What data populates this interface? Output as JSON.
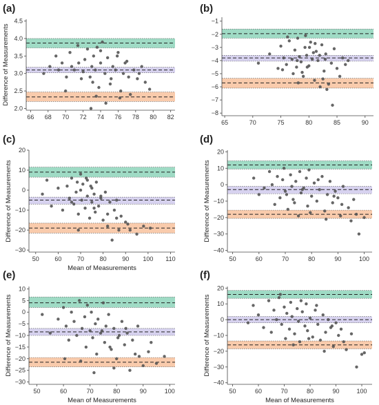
{
  "colors": {
    "upper_band": "#7fcfb1",
    "mean_band": "#c9c3ea",
    "lower_band": "#f7b990",
    "point": "#555555",
    "axis": "#444444"
  },
  "chart_data": [
    {
      "panel": "(a)",
      "type": "scatter",
      "xlabel": "",
      "ylabel": "Difference of Measurements",
      "xlim": [
        65.5,
        82.5
      ],
      "ylim": [
        1.95,
        4.55
      ],
      "xticks": [
        66,
        68,
        70,
        72,
        74,
        76,
        78,
        80,
        82
      ],
      "yticks": [
        2.0,
        2.5,
        3.0,
        3.5,
        4.0,
        4.5
      ],
      "ytick_format": "1",
      "bands": {
        "upper": {
          "y": 3.87,
          "lo": 3.73,
          "hi": 4.0
        },
        "mean": {
          "y": 3.1,
          "lo": 3.02,
          "hi": 3.18
        },
        "lower": {
          "y": 2.33,
          "lo": 2.2,
          "hi": 2.47
        }
      },
      "x": [
        67.5,
        68.2,
        68.9,
        69.6,
        70.1,
        70.5,
        71.0,
        71.4,
        71.8,
        72.2,
        72.5,
        72.8,
        73.0,
        73.2,
        73.4,
        73.6,
        73.8,
        74.0,
        74.2,
        74.5,
        74.8,
        75.1,
        75.4,
        75.7,
        76.0,
        76.3,
        76.6,
        77.0,
        77.4,
        77.8,
        78.2,
        78.7,
        79.1,
        79.6,
        70.0,
        71.5,
        72.0,
        73.5,
        74.6,
        75.9,
        77.2,
        78.4,
        69.2,
        72.9,
        74.0,
        75.2,
        76.8,
        70.7,
        73.1,
        76.2
      ],
      "y": [
        3.0,
        3.2,
        3.5,
        3.3,
        2.9,
        3.6,
        3.1,
        3.8,
        2.85,
        3.4,
        3.7,
        2.9,
        3.2,
        3.5,
        3.1,
        3.75,
        2.6,
        3.3,
        3.9,
        3.0,
        3.45,
        2.7,
        3.2,
        3.1,
        3.6,
        2.5,
        3.0,
        3.35,
        2.4,
        3.1,
        2.85,
        3.2,
        2.75,
        2.55,
        2.5,
        3.3,
        3.05,
        2.35,
        2.15,
        3.5,
        2.9,
        3.0,
        3.1,
        2.0,
        3.65,
        2.85,
        3.3,
        3.2,
        2.75,
        2.3
      ]
    },
    {
      "panel": "(b)",
      "type": "scatter",
      "xlabel": "",
      "ylabel": "",
      "xlim": [
        64.5,
        91.5
      ],
      "ylim": [
        -8.2,
        -0.7
      ],
      "xticks": [
        65,
        70,
        75,
        80,
        85,
        90
      ],
      "yticks": [
        -1,
        -2,
        -3,
        -4,
        -5,
        -6,
        -7,
        -8
      ],
      "ytick_format": "0",
      "bands": {
        "upper": {
          "y": -1.95,
          "lo": -2.3,
          "hi": -1.6
        },
        "mean": {
          "y": -3.8,
          "lo": -4.05,
          "hi": -3.6
        },
        "lower": {
          "y": -5.7,
          "lo": -6.1,
          "hi": -5.35
        }
      },
      "x": [
        71.0,
        73.0,
        74.5,
        75.0,
        75.5,
        76.0,
        76.5,
        77.0,
        77.2,
        77.5,
        77.8,
        78.0,
        78.3,
        78.6,
        79.0,
        79.3,
        79.6,
        80.0,
        80.3,
        80.6,
        81.0,
        81.3,
        81.6,
        82.0,
        82.3,
        82.7,
        83.0,
        83.5,
        84.0,
        84.5,
        85.0,
        85.5,
        86.0,
        87.0,
        76.2,
        78.8,
        80.8,
        82.5,
        84.2,
        79.4,
        77.9,
        81.9,
        83.2,
        75.3,
        80.1,
        86.5,
        78.1,
        82.9,
        79.7,
        81.1
      ],
      "y": [
        -4.2,
        -3.5,
        -4.6,
        -2.9,
        -3.8,
        -4.3,
        -2.5,
        -3.9,
        -5.0,
        -3.2,
        -4.5,
        -2.3,
        -3.7,
        -4.1,
        -5.2,
        -3.0,
        -3.6,
        -4.4,
        -2.6,
        -3.9,
        -5.5,
        -3.3,
        -4.0,
        -6.0,
        -2.8,
        -4.8,
        -3.5,
        -5.8,
        -4.2,
        -3.1,
        -4.6,
        -5.2,
        -3.8,
        -4.0,
        -2.2,
        -4.9,
        -3.4,
        -5.4,
        -7.4,
        -2.1,
        -4.0,
        -3.6,
        -6.2,
        -4.7,
        -3.0,
        -4.3,
        -5.7,
        -3.9,
        -4.5,
        -2.7
      ]
    },
    {
      "panel": "(c)",
      "type": "scatter",
      "xlabel": "Mean of Measurements",
      "ylabel": "Difference of Measurements",
      "xlim": [
        47,
        112
      ],
      "ylim": [
        -31,
        20
      ],
      "xticks": [
        50,
        60,
        70,
        80,
        90,
        100,
        110
      ],
      "yticks": [
        20,
        10,
        0,
        -10,
        -20,
        -30
      ],
      "ytick_format": "0",
      "bands": {
        "upper": {
          "y": 9,
          "lo": 6.5,
          "hi": 11.5
        },
        "mean": {
          "y": -5,
          "lo": -7,
          "hi": -3.5
        },
        "lower": {
          "y": -19,
          "lo": -21.5,
          "hi": -16.5
        }
      },
      "x": [
        53,
        55,
        57,
        60,
        62,
        64,
        65,
        66,
        67,
        68,
        68.5,
        69,
        70,
        70.5,
        71,
        72,
        72.5,
        73,
        74,
        74.5,
        75,
        76,
        76.5,
        77,
        78,
        79,
        80,
        81,
        82,
        83,
        84,
        85,
        86,
        87,
        88,
        90,
        92,
        95,
        98,
        101,
        66,
        70,
        73,
        76,
        79,
        82,
        86,
        91,
        69,
        75
      ],
      "y": [
        -2,
        5,
        -8,
        1,
        -10,
        2,
        -4,
        6,
        -7,
        -1,
        4,
        -12,
        0,
        -5,
        3,
        -9,
        6,
        -3,
        -14,
        2,
        -6,
        -2,
        -11,
        4,
        -8,
        -4,
        -15,
        -1,
        -18,
        -6,
        -25,
        -10,
        -5,
        -20,
        -13,
        -16,
        -20,
        -22,
        -18,
        -19,
        -6,
        8,
        5,
        -9,
        -3,
        -12,
        -14,
        -17,
        -20,
        1
      ]
    },
    {
      "panel": "(d)",
      "type": "scatter",
      "xlabel": "",
      "ylabel": "Difference of Measurements",
      "xlim": [
        48,
        103
      ],
      "ylim": [
        -41,
        21
      ],
      "xticks": [
        50,
        60,
        70,
        80,
        90,
        100
      ],
      "yticks": [
        20,
        10,
        0,
        -10,
        -20,
        -30,
        -40
      ],
      "ytick_format": "0",
      "bands": {
        "upper": {
          "y": 12,
          "lo": 9.5,
          "hi": 14.5
        },
        "mean": {
          "y": -3,
          "lo": -5.5,
          "hi": -1
        },
        "lower": {
          "y": -18,
          "lo": -20.5,
          "hi": -15.5
        }
      },
      "x": [
        58,
        60,
        62,
        64,
        65,
        66,
        67,
        68,
        69,
        69.5,
        70,
        71,
        72,
        72.5,
        73,
        74,
        75,
        75.5,
        76,
        77,
        78,
        78.5,
        79,
        80,
        81,
        82,
        83,
        84,
        85,
        86,
        87,
        88,
        89,
        90,
        91,
        92,
        94,
        95,
        96,
        98,
        100,
        70.5,
        73.5,
        76.5,
        79.5,
        82.5,
        85.5,
        88.5,
        91.5,
        97
      ],
      "y": [
        4,
        -6,
        -2,
        8,
        0,
        -12,
        5,
        -8,
        3,
        10,
        -4,
        -15,
        6,
        -1,
        -9,
        2,
        -19,
        8,
        -5,
        -2,
        4,
        -13,
        9,
        -7,
        1,
        -10,
        -3,
        5,
        -16,
        -6,
        2,
        -11,
        -4,
        -8,
        -19,
        -1,
        -14,
        -22,
        -9,
        -30,
        -20,
        -6,
        -11,
        -3,
        -17,
        3,
        -21,
        -7,
        -12,
        -18
      ]
    },
    {
      "panel": "(e)",
      "type": "scatter",
      "xlabel": "Mean of Measurements",
      "ylabel": "Difference of Measurements",
      "xlim": [
        47,
        102
      ],
      "ylim": [
        -31,
        11
      ],
      "xticks": [
        50,
        60,
        70,
        80,
        90,
        100
      ],
      "yticks": [
        10,
        5,
        0,
        -5,
        -10,
        -15,
        -20,
        -25,
        -30
      ],
      "ytick_format": "0",
      "bands": {
        "upper": {
          "y": 4,
          "lo": 2,
          "hi": 6.5
        },
        "mean": {
          "y": -8.5,
          "lo": -10,
          "hi": -7
        },
        "lower": {
          "y": -21.5,
          "lo": -23.5,
          "hi": -19.5
        }
      },
      "x": [
        52,
        55,
        58,
        60,
        61,
        62,
        63,
        64,
        65,
        66,
        67,
        68,
        68.5,
        69,
        70,
        70.5,
        71,
        72,
        72.5,
        73,
        74,
        75,
        75.5,
        76,
        77,
        78,
        79,
        80,
        81,
        82,
        83,
        84,
        85,
        86,
        87,
        88,
        90,
        92,
        95,
        98,
        66.5,
        71.5,
        74.5,
        77.5,
        80.5,
        83.5,
        88.5,
        93,
        60.5,
        79
      ],
      "y": [
        -1,
        -9,
        -3,
        2,
        -6,
        -12,
        0,
        -4,
        -10,
        5,
        -7,
        -2,
        -15,
        3,
        -8,
        0,
        -11,
        -5,
        -18,
        -3,
        -9,
        4,
        -13,
        -6,
        -1,
        -16,
        -7,
        -20,
        -10,
        -4,
        -14,
        -9,
        -25,
        -12,
        -18,
        -6,
        -23,
        -17,
        -22,
        -19,
        -21,
        -26,
        -8,
        -15,
        -11,
        -7,
        -19,
        -13,
        -20,
        -24
      ]
    },
    {
      "panel": "(f)",
      "type": "scatter",
      "xlabel": "Mean of Measurements",
      "ylabel": "Difference of Measurements",
      "xlim": [
        48,
        104
      ],
      "ylim": [
        -41,
        21
      ],
      "xticks": [
        50,
        60,
        70,
        80,
        90,
        100
      ],
      "yticks": [
        20,
        10,
        0,
        -10,
        -20,
        -30,
        -40
      ],
      "ytick_format": "0",
      "bands": {
        "upper": {
          "y": 16,
          "lo": 13.5,
          "hi": 18.5
        },
        "mean": {
          "y": 0,
          "lo": -2,
          "hi": 2
        },
        "lower": {
          "y": -16,
          "lo": -18.5,
          "hi": -13.5
        }
      },
      "x": [
        56,
        58,
        60,
        62,
        64,
        65,
        66,
        67,
        68,
        69,
        70,
        70.5,
        71,
        72,
        72.5,
        73,
        74,
        75,
        75.5,
        76,
        77,
        78,
        78.5,
        79,
        80,
        81,
        82,
        83,
        84,
        85,
        86,
        87,
        88,
        89,
        90,
        91,
        92,
        94,
        96,
        98,
        100,
        68.5,
        73.5,
        76.5,
        79.5,
        82.5,
        85.5,
        88.5,
        93,
        101
      ],
      "y": [
        -2,
        9,
        3,
        -5,
        12,
        -8,
        6,
        0,
        14,
        -3,
        8,
        -12,
        4,
        -6,
        11,
        2,
        -9,
        7,
        -1,
        -14,
        5,
        -4,
        10,
        -7,
        1,
        -11,
        6,
        -3,
        -13,
        3,
        -8,
        0,
        -5,
        -17,
        -2,
        -10,
        -6,
        -19,
        -9,
        -30,
        -22,
        16,
        -16,
        12,
        -12,
        9,
        -20,
        -4,
        -14,
        -21
      ]
    }
  ]
}
